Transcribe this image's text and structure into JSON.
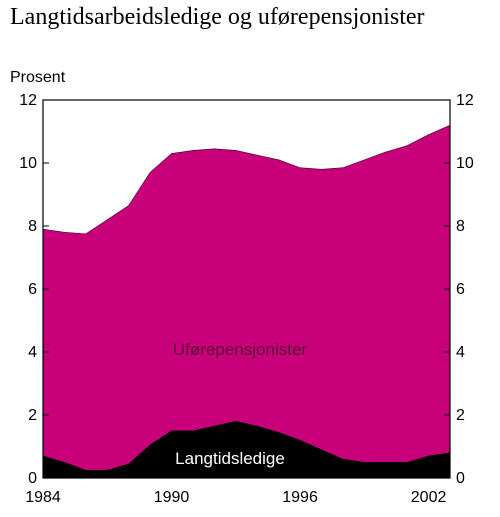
{
  "chart_data": {
    "type": "area",
    "stacked": true,
    "title": "Langtidsarbeidsledige og uførepensjonister",
    "ylabel": "Prosent",
    "xlim": [
      1984,
      2003
    ],
    "ylim": [
      0,
      12
    ],
    "yticks": [
      0,
      2,
      4,
      6,
      8,
      10,
      12
    ],
    "xticks": [
      1984,
      1990,
      1996,
      2002
    ],
    "x": [
      1984,
      1985,
      1986,
      1987,
      1988,
      1989,
      1990,
      1991,
      1992,
      1993,
      1994,
      1995,
      1996,
      1997,
      1998,
      1999,
      2000,
      2001,
      2002,
      2003
    ],
    "series": [
      {
        "name": "Langtidsledige",
        "color": "#000000",
        "label_color": "#ffffff",
        "values": [
          0.7,
          0.5,
          0.25,
          0.25,
          0.45,
          1.05,
          1.5,
          1.5,
          1.65,
          1.8,
          1.65,
          1.45,
          1.2,
          0.9,
          0.6,
          0.5,
          0.5,
          0.5,
          0.7,
          0.8
        ]
      },
      {
        "name": "Uførepensjonister",
        "color": "#c8007a",
        "label_color": "#5a0033",
        "values": [
          7.2,
          7.3,
          7.5,
          7.95,
          8.2,
          8.65,
          8.8,
          8.9,
          8.8,
          8.6,
          8.6,
          8.65,
          8.65,
          8.9,
          9.25,
          9.6,
          9.85,
          10.05,
          10.2,
          10.4
        ]
      }
    ]
  }
}
